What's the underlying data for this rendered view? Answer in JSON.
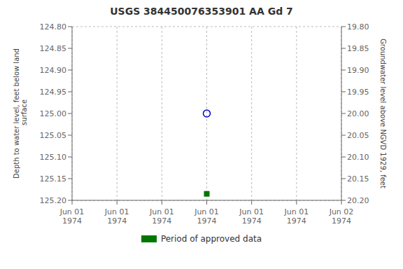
{
  "chart_data": {
    "type": "scatter",
    "title": "USGS 384450076353901 AA Gd   7",
    "y_label": "Depth to water level, feet below land\n surface",
    "y2_label": "Groundwater level above NGVD 1929, feet",
    "categories": [
      "Jun 01\n1974",
      "Jun 01\n1974",
      "Jun 01\n1974",
      "Jun 01\n1974",
      "Jun 01\n1974",
      "Jun 01\n1974",
      "Jun 02\n1974"
    ],
    "series": [
      {
        "color": "#0000cc",
        "marker": "circle",
        "values": [
          null,
          null,
          null,
          125.0,
          null,
          null,
          null
        ]
      },
      {
        "name": "Period of approved data",
        "color": "#007700",
        "marker": "square",
        "values": [
          null,
          null,
          null,
          125.185,
          null,
          null,
          null
        ]
      }
    ],
    "ylim": [
      125.2,
      124.8
    ],
    "yticks": [
      {
        "value": 124.8,
        "label": "124.80"
      },
      124.85,
      {
        "value": 124.9,
        "label": "124.90"
      },
      124.95,
      {
        "value": 125,
        "label": "125.00"
      },
      125.05,
      {
        "value": 125.1,
        "label": "125.10"
      },
      125.15,
      {
        "value": 125.2,
        "label": "125.20"
      }
    ],
    "y2lim": [
      20.2,
      19.8
    ],
    "y2ticks": [
      {
        "value": 20.2,
        "label": "20.20"
      },
      20.15,
      {
        "value": 20.1,
        "label": "20.10"
      },
      20.05,
      {
        "value": 20,
        "label": "20.00"
      },
      19.95,
      {
        "value": 19.9,
        "label": "19.90"
      },
      19.85,
      {
        "value": 19.8,
        "label": "19.80"
      }
    ],
    "grid": true,
    "legend": "bottom"
  }
}
